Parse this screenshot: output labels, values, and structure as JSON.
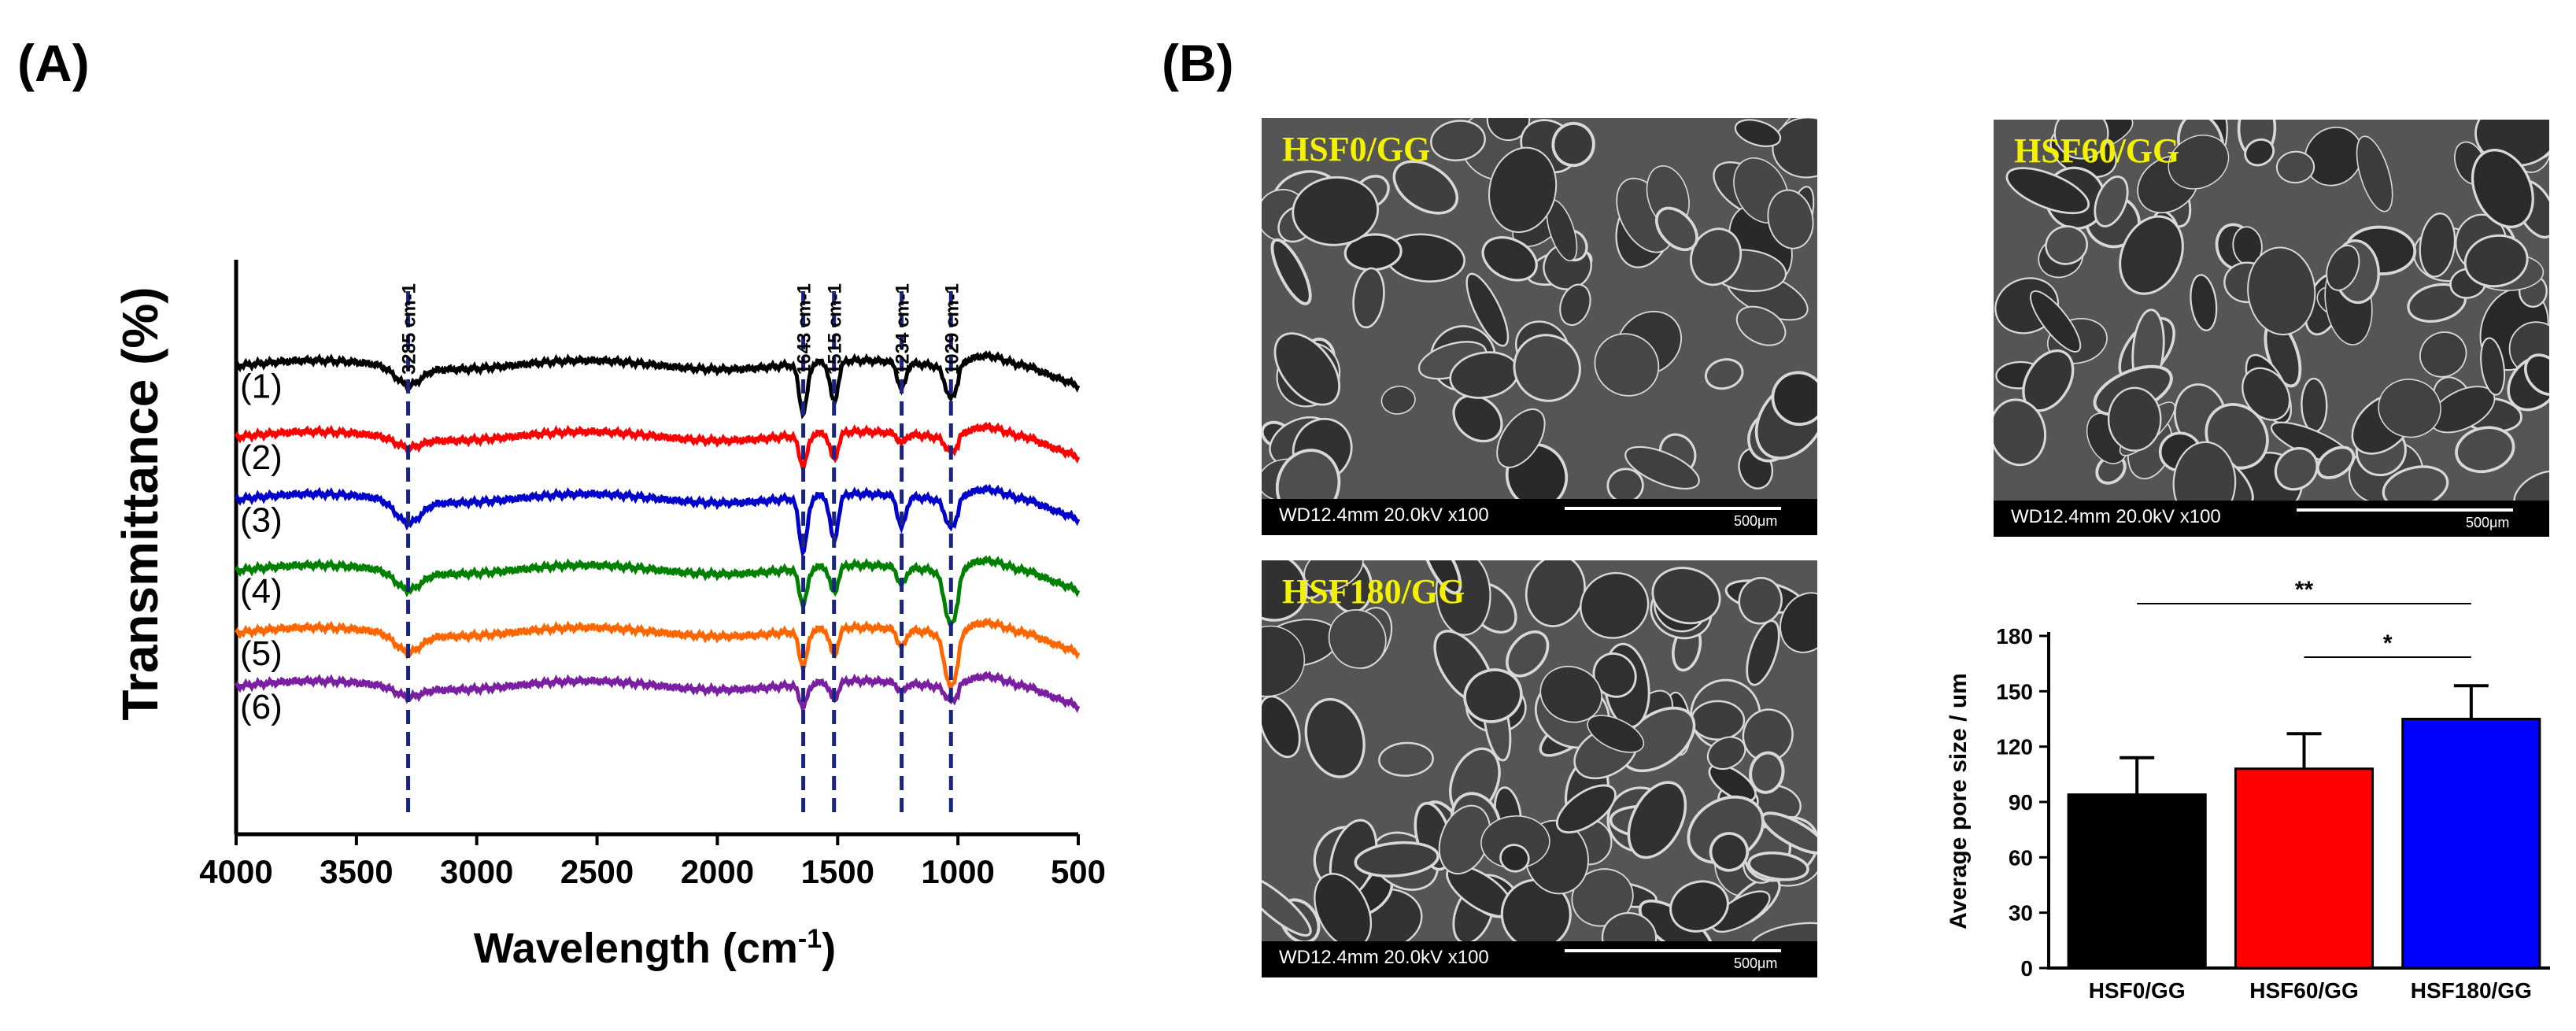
{
  "figure": {
    "panel_a_label": "(A)",
    "panel_b_label": "(B)"
  },
  "chart_data": [
    {
      "type": "line",
      "panel": "A",
      "title": "",
      "xlabel": "Wavelength (cm-1)",
      "xlabel_main": "Wavelength (cm",
      "xlabel_sup": "-1",
      "xlabel_end": ")",
      "ylabel": "Transmittance (%)",
      "xlim": [
        4000,
        500
      ],
      "xticks": [
        4000,
        3500,
        3000,
        2500,
        2000,
        1500,
        1000,
        500
      ],
      "yticks_shown": false,
      "reference_lines": [
        {
          "wavenumber": 3285,
          "label": "3285 cm-1"
        },
        {
          "wavenumber": 1643,
          "label": "1643 cm-1"
        },
        {
          "wavenumber": 1515,
          "label": "1515 cm-1"
        },
        {
          "wavenumber": 1234,
          "label": "1234 cm-1"
        },
        {
          "wavenumber": 1029,
          "label": "1029 cm-1"
        }
      ],
      "series": [
        {
          "name": "(1)",
          "color": "#000000",
          "baseline": 0.86,
          "dips": [
            {
              "x": 3285,
              "depth": 0.04,
              "width": 120
            },
            {
              "x": 1643,
              "depth": 0.11,
              "width": 40
            },
            {
              "x": 1515,
              "depth": 0.09,
              "width": 40
            },
            {
              "x": 1234,
              "depth": 0.06,
              "width": 40
            },
            {
              "x": 1029,
              "depth": 0.07,
              "width": 55
            }
          ]
        },
        {
          "name": "(2)",
          "color": "#ff0000",
          "baseline": 0.7,
          "dips": [
            {
              "x": 3285,
              "depth": 0.02,
              "width": 120
            },
            {
              "x": 1643,
              "depth": 0.07,
              "width": 40
            },
            {
              "x": 1515,
              "depth": 0.06,
              "width": 40
            },
            {
              "x": 1234,
              "depth": 0.02,
              "width": 40
            },
            {
              "x": 1029,
              "depth": 0.03,
              "width": 55
            }
          ]
        },
        {
          "name": "(3)",
          "color": "#0000cc",
          "baseline": 0.56,
          "dips": [
            {
              "x": 3285,
              "depth": 0.05,
              "width": 120
            },
            {
              "x": 1643,
              "depth": 0.12,
              "width": 40
            },
            {
              "x": 1515,
              "depth": 0.1,
              "width": 40
            },
            {
              "x": 1234,
              "depth": 0.07,
              "width": 40
            },
            {
              "x": 1029,
              "depth": 0.06,
              "width": 55
            }
          ]
        },
        {
          "name": "(4)",
          "color": "#008000",
          "baseline": 0.4,
          "dips": [
            {
              "x": 3285,
              "depth": 0.04,
              "width": 120
            },
            {
              "x": 1643,
              "depth": 0.08,
              "width": 40
            },
            {
              "x": 1515,
              "depth": 0.06,
              "width": 40
            },
            {
              "x": 1234,
              "depth": 0.04,
              "width": 40
            },
            {
              "x": 1029,
              "depth": 0.12,
              "width": 60
            }
          ]
        },
        {
          "name": "(5)",
          "color": "#ff6600",
          "baseline": 0.26,
          "dips": [
            {
              "x": 3285,
              "depth": 0.04,
              "width": 120
            },
            {
              "x": 1643,
              "depth": 0.08,
              "width": 40
            },
            {
              "x": 1515,
              "depth": 0.06,
              "width": 40
            },
            {
              "x": 1234,
              "depth": 0.04,
              "width": 40
            },
            {
              "x": 1029,
              "depth": 0.12,
              "width": 60
            }
          ]
        },
        {
          "name": "(6)",
          "color": "#7b1fa2",
          "baseline": 0.14,
          "dips": [
            {
              "x": 3285,
              "depth": 0.02,
              "width": 120
            },
            {
              "x": 1643,
              "depth": 0.05,
              "width": 40
            },
            {
              "x": 1515,
              "depth": 0.04,
              "width": 40
            },
            {
              "x": 1234,
              "depth": 0.02,
              "width": 40
            },
            {
              "x": 1029,
              "depth": 0.03,
              "width": 55
            }
          ]
        }
      ]
    },
    {
      "type": "bar",
      "panel": "B",
      "title": "",
      "xlabel": "",
      "ylabel": "Average pore size / um",
      "ylim": [
        0,
        180
      ],
      "yticks": [
        0,
        30,
        60,
        90,
        120,
        150,
        180
      ],
      "categories": [
        "HSF0/GG",
        "HSF60/GG",
        "HSF180/GG"
      ],
      "values": [
        94,
        108,
        135
      ],
      "errors": [
        20,
        19,
        18
      ],
      "colors": [
        "#000000",
        "#ff0000",
        "#0000ff"
      ],
      "significance": [
        {
          "from": "HSF0/GG",
          "to": "HSF180/GG",
          "label": "**"
        },
        {
          "from": "HSF60/GG",
          "to": "HSF180/GG",
          "label": "*"
        }
      ]
    }
  ],
  "sem_images": [
    {
      "title": "HSF0/GG",
      "info": "WD12.4mm 20.0kV x100",
      "scale": "500μm"
    },
    {
      "title": "HSF60/GG",
      "info": "WD12.4mm 20.0kV x100",
      "scale": "500μm"
    },
    {
      "title": "HSF180/GG",
      "info": "WD12.4mm 20.0kV x100",
      "scale": "500μm"
    }
  ]
}
